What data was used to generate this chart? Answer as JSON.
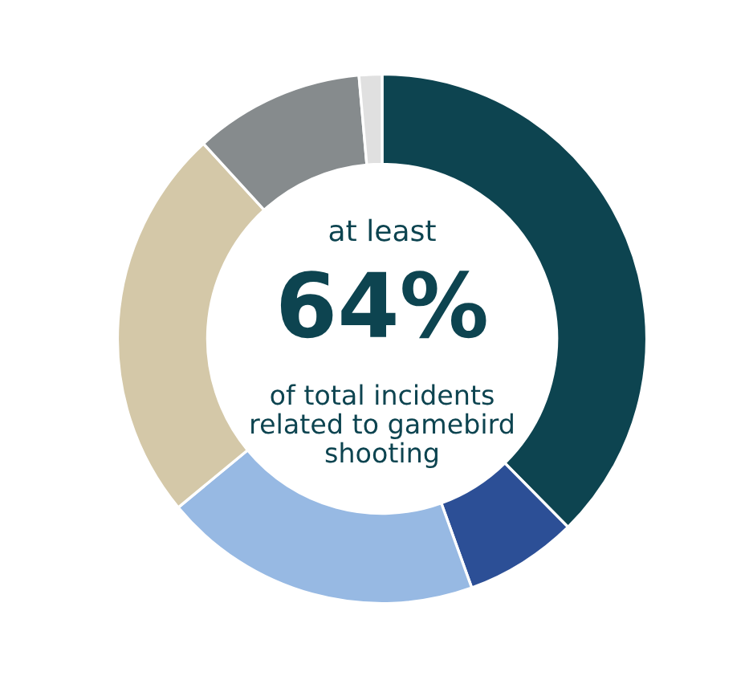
{
  "chart_data": {
    "type": "donut",
    "categories": [
      null,
      null,
      null,
      null,
      null,
      null
    ],
    "values": [
      37.6,
      6.9,
      19.5,
      24.2,
      10.4,
      1.4
    ],
    "colors": [
      "#0d4450",
      "#2c4f96",
      "#97b9e3",
      "#d4c8a8",
      "#868b8d",
      "#e0e0e0"
    ],
    "annotations": [
      "at least",
      "64%",
      "of total incidents\nrelated to gamebird\nshooting"
    ]
  }
}
